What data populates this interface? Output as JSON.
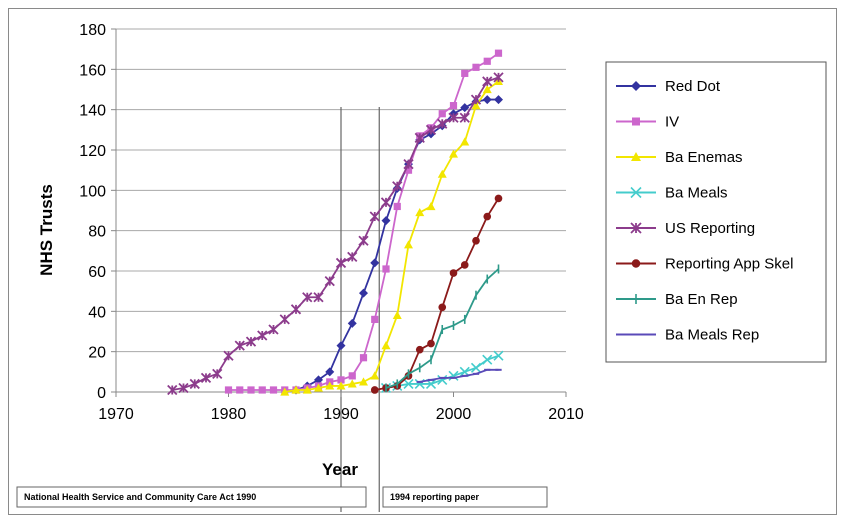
{
  "chart_data": {
    "type": "line",
    "title": "",
    "xlabel": "Year",
    "ylabel": "NHS Trusts",
    "xlim": [
      1970,
      2010
    ],
    "ylim": [
      0,
      180
    ],
    "xticks": [
      1970,
      1980,
      1990,
      2000,
      2010
    ],
    "yticks": [
      0,
      20,
      40,
      60,
      80,
      100,
      120,
      140,
      160,
      180
    ],
    "grid": "horizontal",
    "legend_position": "right",
    "vlines": [
      1990,
      1993.4
    ],
    "annotations": [
      {
        "text": "National Health Service and Community Care Act 1990",
        "x": 1990
      },
      {
        "text": "1994 reporting paper",
        "x": 1993.4
      }
    ],
    "series": [
      {
        "name": "Red Dot",
        "color": "#3333a0",
        "marker": "diamond",
        "x": [
          1986,
          1987,
          1988,
          1989,
          1990,
          1991,
          1992,
          1993,
          1994,
          1995,
          1996,
          1997,
          1998,
          1999,
          2000,
          2001,
          2002,
          2003,
          2004
        ],
        "y": [
          1,
          3,
          6,
          10,
          23,
          34,
          49,
          64,
          85,
          101,
          113,
          125,
          128,
          132,
          138,
          141,
          144,
          145,
          145
        ]
      },
      {
        "name": "IV",
        "color": "#cc66cc",
        "marker": "square",
        "x": [
          1980,
          1981,
          1982,
          1983,
          1984,
          1985,
          1986,
          1987,
          1988,
          1989,
          1990,
          1991,
          1992,
          1993,
          1994,
          1995,
          1996,
          1997,
          1998,
          1999,
          2000,
          2001,
          2002,
          2003,
          2004
        ],
        "y": [
          1,
          1,
          1,
          1,
          1,
          1,
          1,
          2,
          3,
          5,
          6,
          8,
          17,
          36,
          61,
          92,
          110,
          127,
          131,
          138,
          142,
          158,
          161,
          164,
          168
        ]
      },
      {
        "name": "Ba Enemas",
        "color": "#f2e600",
        "marker": "triangle",
        "x": [
          1985,
          1986,
          1987,
          1988,
          1989,
          1990,
          1991,
          1992,
          1993,
          1994,
          1995,
          1996,
          1997,
          1998,
          1999,
          2000,
          2001,
          2002,
          2003,
          2004
        ],
        "y": [
          0,
          1,
          1,
          2,
          3,
          3,
          4,
          5,
          8,
          23,
          38,
          73,
          89,
          92,
          108,
          118,
          124,
          142,
          150,
          154
        ]
      },
      {
        "name": "Ba Meals",
        "color": "#44cccc",
        "marker": "x",
        "x": [
          1994,
          1995,
          1996,
          1997,
          1998,
          1999,
          2000,
          2001,
          2002,
          2003,
          2004
        ],
        "y": [
          2,
          3,
          4,
          4,
          4,
          6,
          8,
          10,
          12,
          16,
          18
        ]
      },
      {
        "name": "US Reporting",
        "color": "#8c3c8c",
        "marker": "star",
        "x": [
          1975,
          1976,
          1977,
          1978,
          1979,
          1980,
          1981,
          1982,
          1983,
          1984,
          1985,
          1986,
          1987,
          1988,
          1989,
          1990,
          1991,
          1992,
          1993,
          1994,
          1995,
          1996,
          1997,
          1998,
          1999,
          2000,
          2001,
          2002,
          2003,
          2004
        ],
        "y": [
          1,
          2,
          4,
          7,
          9,
          18,
          23,
          25,
          28,
          31,
          36,
          41,
          47,
          47,
          55,
          64,
          67,
          75,
          87,
          94,
          102,
          113,
          126,
          130,
          133,
          136,
          136,
          145,
          154,
          156
        ]
      },
      {
        "name": "Reporting App Skel",
        "color": "#8b1a1a",
        "marker": "circle",
        "x": [
          1993,
          1994,
          1995,
          1996,
          1997,
          1998,
          1999,
          2000,
          2001,
          2002,
          2003,
          2004
        ],
        "y": [
          1,
          2,
          3,
          8,
          21,
          24,
          42,
          59,
          63,
          75,
          87,
          96
        ]
      },
      {
        "name": "Ba En Rep",
        "color": "#2e9a8a",
        "marker": "plus",
        "x": [
          1994,
          1995,
          1996,
          1997,
          1998,
          1999,
          2000,
          2001,
          2002,
          2003,
          2004
        ],
        "y": [
          2,
          4,
          9,
          12,
          16,
          31,
          33,
          36,
          48,
          56,
          61
        ]
      },
      {
        "name": "Ba Meals Rep",
        "color": "#5a4ab8",
        "marker": "dash",
        "x": [
          1997,
          1998,
          1999,
          2000,
          2001,
          2002,
          2003,
          2004
        ],
        "y": [
          5,
          6,
          7,
          7,
          8,
          9,
          11,
          11
        ]
      }
    ]
  }
}
